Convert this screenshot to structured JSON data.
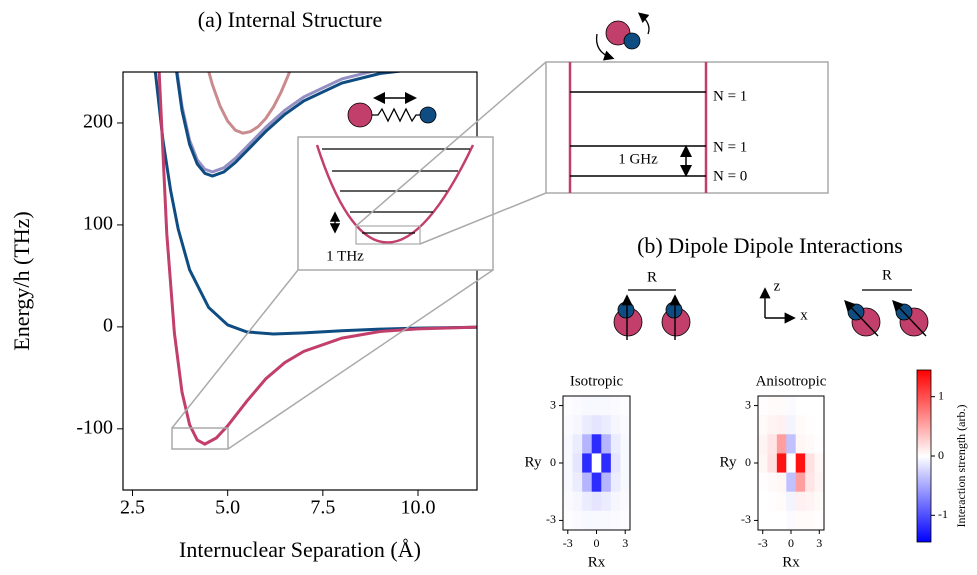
{
  "chart_data": [
    {
      "type": "line",
      "title": "(a) Internal Structure",
      "xlabel": "Internuclear Separation (Å)",
      "ylabel": "Energy/h (THz)",
      "xlim": [
        2.25,
        11.55
      ],
      "ylim": [
        -160,
        250
      ],
      "xticks": [
        2.5,
        {
          "value": 5,
          "label": "5.0"
        },
        7.5,
        {
          "value": 10,
          "label": "10.0"
        }
      ],
      "yticks": [
        -100,
        0,
        100,
        200
      ],
      "series": [
        {
          "color": "#c98b8e",
          "x": [
            4.4,
            4.6,
            4.8,
            5.0,
            5.2,
            5.4,
            5.6,
            5.8,
            6.0,
            6.2,
            6.4,
            6.6,
            6.8
          ],
          "values": [
            264,
            237.4,
            216.6,
            201.8,
            193,
            190,
            191.6,
            196.4,
            204.4,
            215.6,
            230,
            247.6,
            268.4
          ]
        },
        {
          "color": "#9590c4",
          "x": [
            3.6,
            3.8,
            4.0,
            4.2,
            4.4,
            4.6,
            4.9,
            5.2,
            5.6,
            6.0,
            6.5,
            7.0,
            8.0,
            9.0,
            10.0
          ],
          "values": [
            269.6,
            216.4,
            183,
            163.8,
            154.6,
            152,
            156,
            165.2,
            180.4,
            195.7,
            212.4,
            225.6,
            243.2,
            252.5,
            257
          ]
        },
        {
          "color": "#0f4c81",
          "x": [
            3.6,
            3.8,
            4.0,
            4.2,
            4.4,
            4.6,
            4.9,
            5.2,
            5.6,
            6.0,
            6.5,
            7.0,
            8.0,
            9.0,
            10.0
          ],
          "values": [
            265.6,
            212.4,
            179,
            159.8,
            150.6,
            148,
            152,
            161.2,
            176.4,
            191.7,
            208.4,
            221.6,
            239.2,
            248.5,
            253
          ]
        },
        {
          "color": "#0f4c81",
          "x": [
            3.1,
            3.3,
            3.5,
            3.7,
            4.0,
            4.5,
            5.0,
            5.5,
            6.2,
            7.0,
            8.0,
            9.0,
            10.0,
            11.55
          ],
          "values": [
            250,
            183,
            134,
            96,
            56,
            19,
            1.9,
            -4.9,
            -7,
            -5.9,
            -3.8,
            -2.2,
            -1.2,
            -0.4
          ]
        },
        {
          "color": "#c23e6b",
          "x": [
            3.2,
            3.4,
            3.6,
            3.8,
            4.0,
            4.2,
            4.4,
            4.7,
            5.0,
            5.5,
            6.0,
            6.5,
            7.0,
            8.0,
            9.0,
            10.0,
            11.55
          ],
          "values": [
            250,
            91.5,
            -6,
            -64,
            -96,
            -111,
            -115,
            -109,
            -97,
            -73,
            -51,
            -35,
            -24,
            -11,
            -4.5,
            -2,
            -0.3
          ]
        }
      ],
      "annotations": [
        "1 THz",
        "N = 1",
        "N = 1",
        "N = 0",
        "1 GHz"
      ]
    },
    {
      "type": "heatmap",
      "title": "Isotropic",
      "xlabel": "Rx",
      "ylabel": "Ry",
      "x": [
        -3,
        -2,
        -1,
        0,
        1,
        2,
        3
      ],
      "y": [
        3,
        2,
        1,
        0,
        -1,
        -2,
        -3
      ],
      "xlim": [
        -3.5,
        3.5
      ],
      "ylim": [
        -3.5,
        3.5
      ],
      "xticks": [
        -3,
        0,
        3
      ],
      "yticks": [
        -3,
        0,
        3
      ],
      "clim": [
        -1.45,
        1.45
      ],
      "z": [
        [
          -0.01,
          -0.02,
          -0.04,
          -0.04,
          -0.04,
          -0.02,
          -0.01
        ],
        [
          -0.02,
          -0.05,
          -0.11,
          -0.15,
          -0.11,
          -0.05,
          -0.02
        ],
        [
          -0.04,
          -0.11,
          -0.42,
          -1.2,
          -0.42,
          -0.11,
          -0.04
        ],
        [
          -0.04,
          -0.15,
          -1.2,
          0,
          -1.2,
          -0.15,
          -0.04
        ],
        [
          -0.04,
          -0.11,
          -0.42,
          -1.2,
          -0.42,
          -0.11,
          -0.04
        ],
        [
          -0.02,
          -0.05,
          -0.11,
          -0.15,
          -0.11,
          -0.05,
          -0.02
        ],
        [
          -0.01,
          -0.02,
          -0.04,
          -0.04,
          -0.04,
          -0.02,
          -0.01
        ]
      ]
    },
    {
      "type": "heatmap",
      "title": "Anisotropic",
      "xlabel": "Rx",
      "ylabel": "Ry",
      "x": [
        -3,
        -2,
        -1,
        0,
        1,
        2,
        3
      ],
      "y": [
        3,
        2,
        1,
        0,
        -1,
        -2,
        -3
      ],
      "xlim": [
        -3.5,
        3.5
      ],
      "ylim": [
        -3.5,
        3.5
      ],
      "xticks": [
        -3,
        0,
        3
      ],
      "yticks": [
        -3,
        0,
        3
      ],
      "clim": [
        -1.45,
        1.45
      ],
      "colorbar": {
        "label": "Interaction strength (arb.)",
        "ticks": [
          -1,
          0,
          1
        ]
      },
      "z": [
        [
          0.01,
          0.02,
          0.02,
          -0.02,
          0,
          0,
          0
        ],
        [
          0.03,
          0.06,
          0.08,
          -0.06,
          0.02,
          0.01,
          0
        ],
        [
          0.06,
          0.15,
          0.55,
          -0.35,
          0.05,
          0.03,
          0.01
        ],
        [
          0.05,
          0.17,
          1.35,
          0,
          1.35,
          0.17,
          0.05
        ],
        [
          0.01,
          0.03,
          0.05,
          -0.35,
          0.55,
          0.15,
          0.06
        ],
        [
          0,
          0.01,
          0.02,
          -0.06,
          0.08,
          0.06,
          0.03
        ],
        [
          0,
          0,
          0,
          -0.02,
          0.02,
          0.02,
          0.01
        ]
      ]
    }
  ],
  "panel_b": {
    "title": "(b) Dipole Dipole Interactions",
    "labels": [
      "R",
      "z",
      "x",
      "R"
    ]
  }
}
